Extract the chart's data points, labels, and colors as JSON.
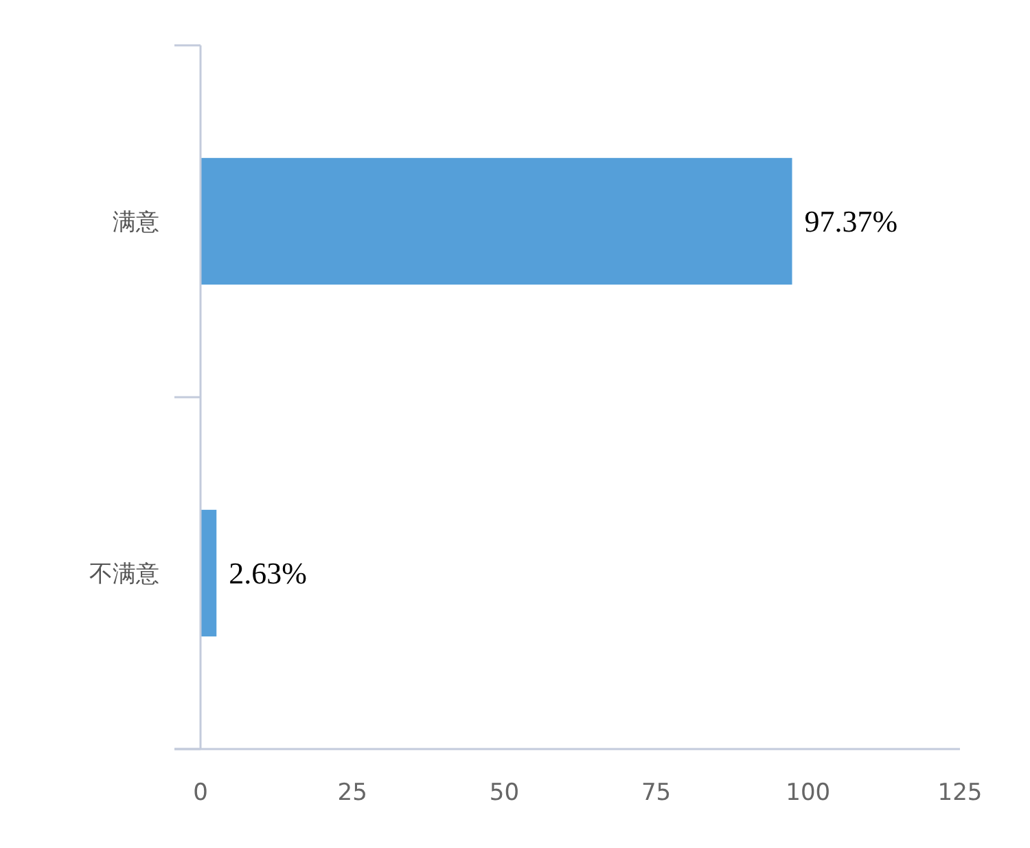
{
  "chart_data": {
    "type": "bar",
    "orientation": "horizontal",
    "categories": [
      "满意",
      "不满意"
    ],
    "values": [
      97.37,
      2.63
    ],
    "color": "#559fd9",
    "value_labels": [
      "97.37%",
      "2.63%"
    ],
    "xlim": [
      0,
      125
    ],
    "xticks": [
      0,
      25,
      50,
      75,
      100,
      125
    ],
    "grid": false
  }
}
